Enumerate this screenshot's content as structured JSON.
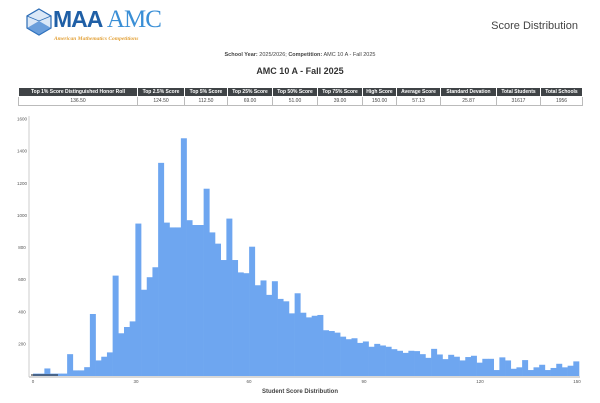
{
  "header": {
    "logo_text": "MAA AMC",
    "logo_main": "MAA",
    "logo_accent": "AMC",
    "logo_subtitle": "American Mathematics Competitions",
    "report_title": "Score Distribution"
  },
  "meta": {
    "school_year_label": "School Year:",
    "school_year": "2025/2026;",
    "competition_label": "Competition:",
    "competition": "AMC 10 A - Fall 2025"
  },
  "competition_title": "AMC 10 A - Fall 2025",
  "stats_table": {
    "headers": [
      "Top 1% Score Distinguished Honor Roll",
      "Top 2.5% Score",
      "Top 5% Score",
      "Top 25% Score",
      "Top 50% Score",
      "Top 75% Score",
      "High Score",
      "Average Score",
      "Standard Devation",
      "Total Students",
      "Total Schools"
    ],
    "values": [
      "136.50",
      "124.50",
      "112.50",
      "69.00",
      "51.00",
      "39.00",
      "150.00",
      "57.13",
      "25.87",
      "31617",
      "1956"
    ]
  },
  "chart_data": {
    "type": "bar",
    "xlabel": "Student Score Distribution",
    "ylabel": "",
    "ylim": [
      0,
      1600
    ],
    "xlim": [
      0,
      150
    ],
    "x_ticks": [
      "0",
      "30",
      "60",
      "90",
      "120",
      "150"
    ],
    "y_ticks": [
      "200",
      "400",
      "600",
      "800",
      "1000",
      "1200",
      "1400",
      "1600"
    ],
    "bar_color": "#6ea6f0",
    "grid": false,
    "values": [
      15,
      15,
      47,
      15,
      15,
      15,
      136,
      35,
      35,
      55,
      386,
      97,
      120,
      147,
      625,
      266,
      305,
      340,
      949,
      537,
      615,
      677,
      1327,
      955,
      925,
      925,
      1480,
      970,
      940,
      940,
      1166,
      894,
      824,
      722,
      980,
      722,
      645,
      640,
      805,
      565,
      595,
      505,
      590,
      480,
      465,
      390,
      515,
      394,
      365,
      375,
      380,
      285,
      280,
      270,
      245,
      229,
      235,
      206,
      215,
      182,
      200,
      190,
      182,
      167,
      157,
      144,
      157,
      155,
      136,
      113,
      169,
      134,
      105,
      132,
      120,
      97,
      118,
      126,
      83,
      107,
      107,
      37,
      116,
      97,
      45,
      54,
      99,
      37,
      54,
      70,
      37,
      50,
      76,
      54,
      64,
      91
    ]
  }
}
